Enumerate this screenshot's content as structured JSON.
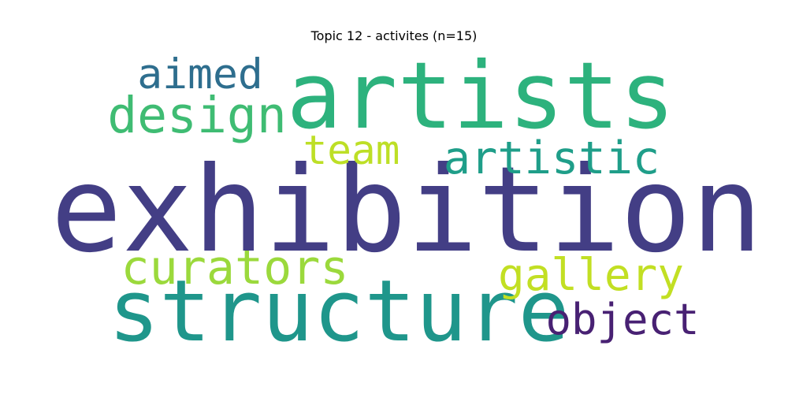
{
  "title": "Topic 12 - activites (n=15)",
  "chart_data": {
    "type": "wordcloud",
    "title": "Topic 12 - activites (n=15)",
    "words": [
      {
        "text": "exhibition",
        "weight": 1.0,
        "color": "#433e85"
      },
      {
        "text": "artists",
        "weight": 0.78,
        "color": "#2db27d"
      },
      {
        "text": "structure",
        "weight": 0.72,
        "color": "#1f968b"
      },
      {
        "text": "design",
        "weight": 0.42,
        "color": "#3fbc73"
      },
      {
        "text": "curators",
        "weight": 0.4,
        "color": "#9bd93c"
      },
      {
        "text": "artistic",
        "weight": 0.38,
        "color": "#1f9e89"
      },
      {
        "text": "gallery",
        "weight": 0.37,
        "color": "#c2df23"
      },
      {
        "text": "object",
        "weight": 0.36,
        "color": "#482173"
      },
      {
        "text": "aimed",
        "weight": 0.35,
        "color": "#2e6e8e"
      },
      {
        "text": "team",
        "weight": 0.34,
        "color": "#bddf26"
      }
    ]
  }
}
